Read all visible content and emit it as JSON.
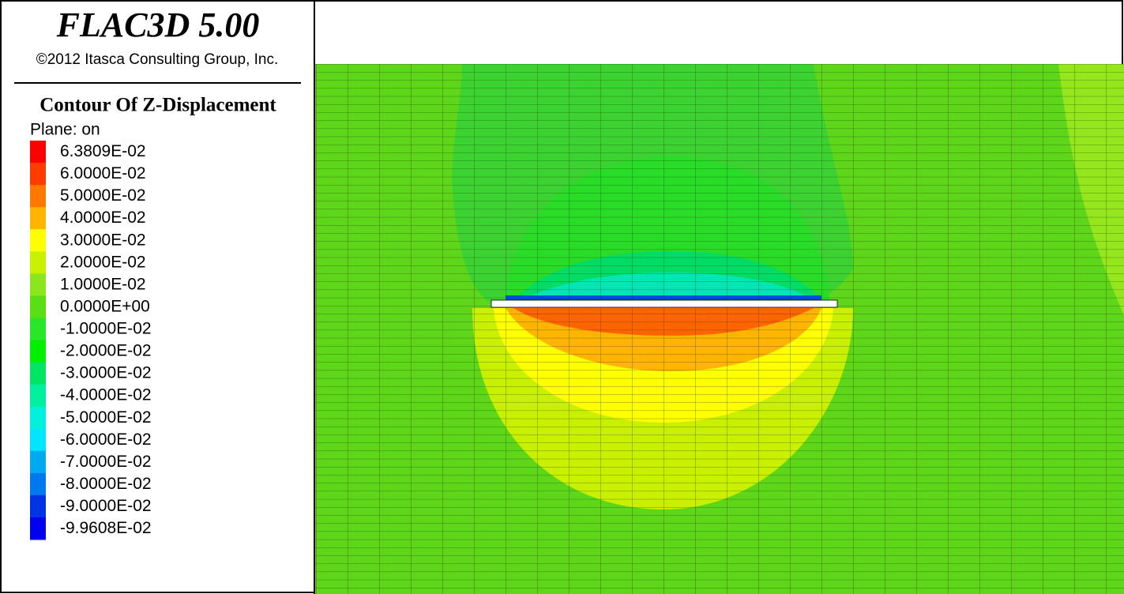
{
  "header": {
    "title": "FLAC3D 5.00",
    "copyright": "©2012 Itasca Consulting Group, Inc."
  },
  "legend": {
    "title": "Contour Of Z-Displacement",
    "plane": "Plane: on",
    "items": [
      {
        "label": "6.3809E-02",
        "color": "#ff0000"
      },
      {
        "label": "6.0000E-02",
        "color": "#ff3c00"
      },
      {
        "label": "5.0000E-02",
        "color": "#ff7800"
      },
      {
        "label": "4.0000E-02",
        "color": "#ffb400"
      },
      {
        "label": "3.0000E-02",
        "color": "#ffff00"
      },
      {
        "label": "2.0000E-02",
        "color": "#c8f000"
      },
      {
        "label": "1.0000E-02",
        "color": "#8ce61e"
      },
      {
        "label": "0.0000E+00",
        "color": "#5ade14"
      },
      {
        "label": "-1.0000E-02",
        "color": "#28e628"
      },
      {
        "label": "-2.0000E-02",
        "color": "#00f000"
      },
      {
        "label": "-3.0000E-02",
        "color": "#00e664"
      },
      {
        "label": "-4.0000E-02",
        "color": "#00f0a0"
      },
      {
        "label": "-5.0000E-02",
        "color": "#00f0dc"
      },
      {
        "label": "-6.0000E-02",
        "color": "#00e6ff"
      },
      {
        "label": "-7.0000E-02",
        "color": "#00aaf0"
      },
      {
        "label": "-8.0000E-02",
        "color": "#0078f0"
      },
      {
        "label": "-9.0000E-02",
        "color": "#0032e6"
      },
      {
        "label": "-9.9608E-02",
        "color": "#0000f0"
      }
    ]
  }
}
